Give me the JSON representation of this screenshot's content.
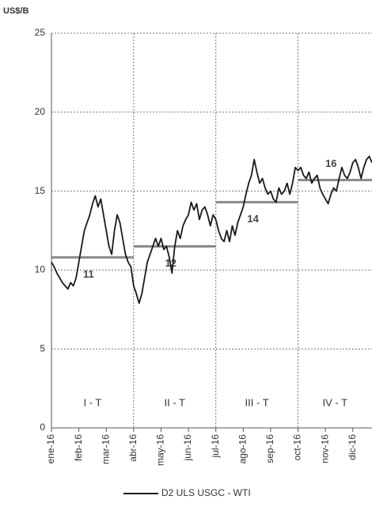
{
  "chart_data": {
    "type": "line",
    "y_unit_label": "US$/B",
    "xlim": [
      0,
      11.7
    ],
    "xticks": [
      {
        "value": 0,
        "label": "ene-16"
      },
      {
        "value": 1,
        "label": "feb-16"
      },
      {
        "value": 2,
        "label": "mar-16"
      },
      {
        "value": 3,
        "label": "abr-16"
      },
      {
        "value": 4,
        "label": "may-16"
      },
      {
        "value": 5,
        "label": "jun-16"
      },
      {
        "value": 6,
        "label": "jul-16"
      },
      {
        "value": 7,
        "label": "ago-16"
      },
      {
        "value": 8,
        "label": "sep-16"
      },
      {
        "value": 9,
        "label": "oct-16"
      },
      {
        "value": 10,
        "label": "nov-16"
      },
      {
        "value": 11,
        "label": "dic-16"
      }
    ],
    "ylim": [
      0,
      25
    ],
    "yticks": [
      0,
      5,
      10,
      15,
      20,
      25
    ],
    "grid": true,
    "legend": "bottom",
    "series": [
      {
        "name": "D2 ULS USGC - WTI",
        "color": "#1a1a1a",
        "x": [
          0,
          0.1,
          0.2,
          0.3,
          0.4,
          0.5,
          0.6,
          0.7,
          0.8,
          0.9,
          1,
          1.1,
          1.2,
          1.3,
          1.4,
          1.5,
          1.6,
          1.7,
          1.8,
          1.9,
          2,
          2.1,
          2.2,
          2.3,
          2.4,
          2.5,
          2.6,
          2.7,
          2.8,
          2.9,
          3,
          3.1,
          3.2,
          3.3,
          3.4,
          3.5,
          3.6,
          3.7,
          3.8,
          3.9,
          4,
          4.1,
          4.2,
          4.3,
          4.4,
          4.5,
          4.6,
          4.7,
          4.8,
          4.9,
          5,
          5.1,
          5.2,
          5.3,
          5.4,
          5.5,
          5.6,
          5.7,
          5.8,
          5.9,
          6,
          6.1,
          6.2,
          6.3,
          6.4,
          6.5,
          6.6,
          6.7,
          6.8,
          6.9,
          7,
          7.1,
          7.2,
          7.3,
          7.4,
          7.5,
          7.6,
          7.7,
          7.8,
          7.9,
          8,
          8.1,
          8.2,
          8.3,
          8.4,
          8.5,
          8.6,
          8.7,
          8.8,
          8.9,
          9,
          9.1,
          9.2,
          9.3,
          9.4,
          9.5,
          9.6,
          9.7,
          9.8,
          9.9,
          10,
          10.1,
          10.2,
          10.3,
          10.4,
          10.5,
          10.6,
          10.7,
          10.8,
          10.9,
          11,
          11.1,
          11.2,
          11.3,
          11.4,
          11.5,
          11.6,
          11.7
        ],
        "values": [
          10.5,
          10.2,
          9.8,
          9.5,
          9.2,
          9.0,
          8.8,
          9.2,
          9.0,
          9.5,
          10.5,
          11.5,
          12.5,
          13.0,
          13.5,
          14.2,
          14.7,
          14.0,
          14.5,
          13.5,
          12.5,
          11.5,
          11.0,
          12.5,
          13.5,
          13.0,
          12.0,
          11.0,
          10.5,
          10.2,
          9.0,
          8.5,
          7.9,
          8.5,
          9.5,
          10.5,
          11.0,
          11.5,
          12.0,
          11.5,
          12.0,
          11.3,
          11.5,
          10.8,
          9.8,
          11.5,
          12.5,
          12.0,
          12.8,
          13.2,
          13.5,
          14.3,
          13.8,
          14.2,
          13.2,
          13.8,
          14.0,
          13.5,
          12.8,
          13.5,
          13.2,
          12.5,
          12.0,
          11.8,
          12.5,
          11.8,
          12.8,
          12.2,
          13.0,
          13.5,
          14.0,
          14.8,
          15.5,
          16.0,
          17.0,
          16.2,
          15.5,
          15.8,
          15.2,
          14.8,
          15.0,
          14.5,
          14.3,
          15.2,
          14.8,
          15.0,
          15.5,
          14.8,
          15.5,
          16.5,
          16.3,
          16.5,
          16.0,
          15.8,
          16.2,
          15.5,
          15.8,
          16.0,
          15.2,
          14.8,
          14.5,
          14.2,
          14.8,
          15.2,
          15.0,
          15.8,
          16.5,
          16.0,
          15.8,
          16.2,
          16.8,
          17.0,
          16.5,
          15.8,
          16.5,
          17.0,
          17.2,
          16.8
        ]
      }
    ],
    "quarter_averages": {
      "color": "#8a8a8a",
      "segments": [
        {
          "start": 0,
          "end": 3,
          "value": 10.8,
          "label": "11",
          "period": "I - T"
        },
        {
          "start": 3,
          "end": 6,
          "value": 11.5,
          "label": "12",
          "period": "II - T"
        },
        {
          "start": 6,
          "end": 9,
          "value": 14.3,
          "label": "14",
          "period": "III - T"
        },
        {
          "start": 9,
          "end": 11.7,
          "value": 15.7,
          "label": "16",
          "period": "IV - T"
        }
      ]
    }
  }
}
